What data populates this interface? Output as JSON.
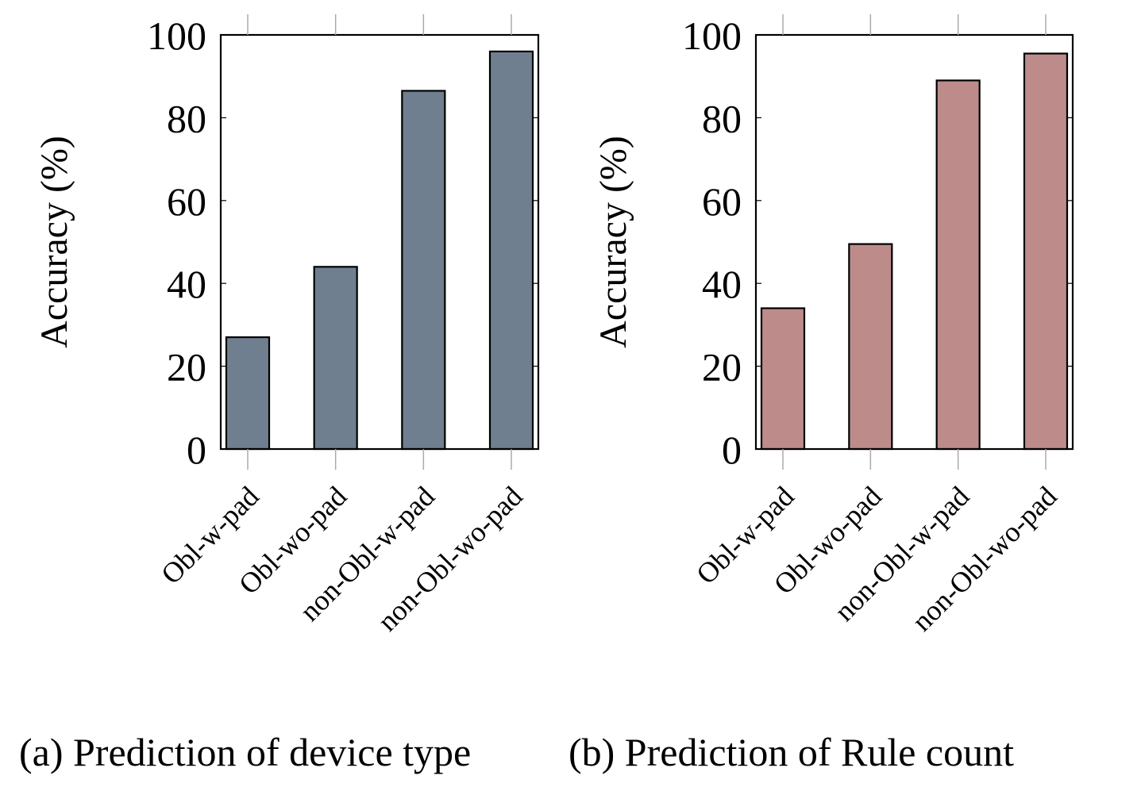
{
  "chart_data": [
    {
      "type": "bar",
      "caption": "(a) Prediction of device type",
      "categories": [
        "Obl-w-pad",
        "Obl-wo-pad",
        "non-Obl-w-pad",
        "non-Obl-wo-pad"
      ],
      "values": [
        27,
        44,
        86.5,
        96
      ],
      "ylabel": "Accuracy (%)",
      "xlabel": "",
      "ylim": [
        0,
        100
      ],
      "yticks": [
        "0",
        "20",
        "40",
        "60",
        "80",
        "100"
      ],
      "bar_color": "#6f7f8f",
      "grid": false
    },
    {
      "type": "bar",
      "caption": "(b) Prediction of Rule count",
      "categories": [
        "Obl-w-pad",
        "Obl-wo-pad",
        "non-Obl-w-pad",
        "non-Obl-wo-pad"
      ],
      "values": [
        34,
        49.5,
        89,
        95.5
      ],
      "ylabel": "Accuracy (%)",
      "xlabel": "",
      "ylim": [
        0,
        100
      ],
      "yticks": [
        "0",
        "20",
        "40",
        "60",
        "80",
        "100"
      ],
      "bar_color": "#bd8c8a",
      "grid": false
    }
  ]
}
